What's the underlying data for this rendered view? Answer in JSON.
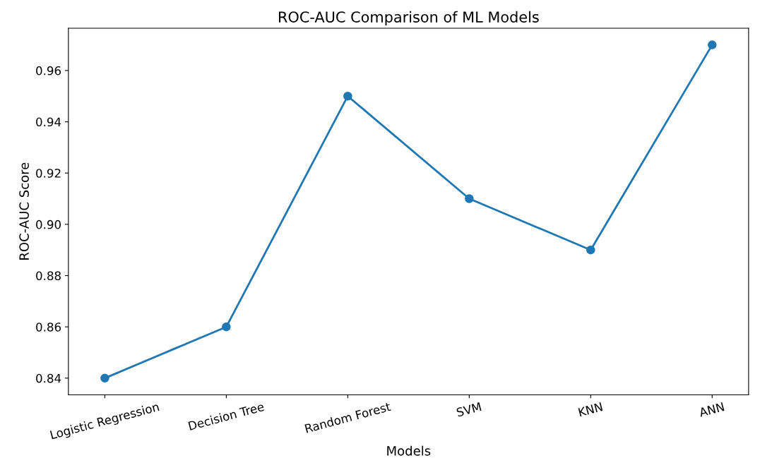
{
  "chart_data": {
    "type": "line",
    "title": "ROC-AUC Comparison of ML Models",
    "xlabel": "Models",
    "ylabel": "ROC-AUC Score",
    "categories": [
      "Logistic Regression",
      "Decision Tree",
      "Random Forest",
      "SVM",
      "KNN",
      "ANN"
    ],
    "series": [
      {
        "color": "#1f77b4",
        "values": [
          0.84,
          0.86,
          0.95,
          0.91,
          0.89,
          0.97
        ]
      }
    ],
    "ylim": [
      0.8335,
      0.9765
    ],
    "yticks": [
      0.84,
      0.86,
      0.88,
      {
        "value": 0.9,
        "label": "0.90"
      },
      0.92,
      0.94,
      0.96
    ],
    "marker": "circle",
    "line_style": "solid",
    "grid": false,
    "legend": false
  }
}
